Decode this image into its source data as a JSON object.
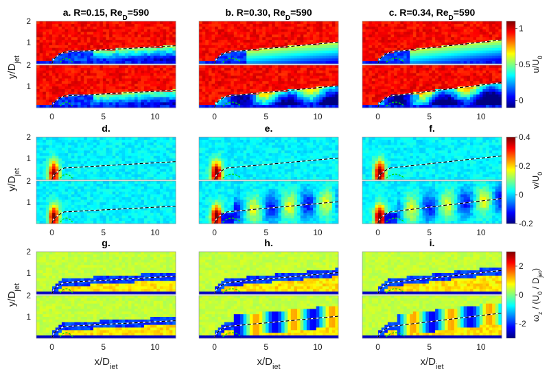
{
  "chart_data": {
    "type": "heatmap",
    "layout": {
      "rows": 3,
      "cols": 3,
      "subplots_per_panel": 2
    },
    "columns": [
      {
        "R": 0.15,
        "Re_D": 590,
        "title_prefix": "a.",
        "title_main": "R=0.15, Re",
        "title_sub": "D",
        "title_tail": "=590"
      },
      {
        "R": 0.3,
        "Re_D": 590,
        "title_prefix": "b.",
        "title_main": "R=0.30, Re",
        "title_sub": "D",
        "title_tail": "=590"
      },
      {
        "R": 0.34,
        "Re_D": 590,
        "title_prefix": "c.",
        "title_main": "R=0.34, Re",
        "title_sub": "D",
        "title_tail": "=590"
      }
    ],
    "row_titles": [
      [
        "",
        "",
        ""
      ],
      [
        "d.",
        "e.",
        "f."
      ],
      [
        "g.",
        "h.",
        "i."
      ]
    ],
    "xlabel": {
      "main": "x/D",
      "sub": "jet"
    },
    "ylabel": {
      "main": "y/D",
      "sub": "jet"
    },
    "xlim": [
      -1.5,
      12
    ],
    "ylim": [
      0,
      2
    ],
    "xticks": [
      0,
      5,
      10
    ],
    "yticks_upper": [
      1,
      2
    ],
    "yticks_lower": [
      1,
      2
    ],
    "fields": [
      {
        "name": "u",
        "colorbar": {
          "label_main": "u/U",
          "label_sub": "0",
          "min": -0.1,
          "max": 1.1,
          "ticks": [
            0,
            0.5,
            1
          ]
        }
      },
      {
        "name": "v",
        "colorbar": {
          "label_main": "v/U",
          "label_sub": "0",
          "min": -0.2,
          "max": 0.4,
          "ticks": [
            -0.2,
            0,
            0.2,
            0.4
          ]
        }
      },
      {
        "name": "omega_z",
        "colorbar": {
          "label_main": "ω",
          "label_sub": "z",
          "label_tail": " / (U",
          "label_sub2": "0",
          "label_tail2": " / D",
          "label_sub3": "jet",
          "label_tail3": ")",
          "min": -3,
          "max": 3,
          "ticks": [
            -2,
            0,
            2
          ]
        }
      }
    ],
    "trajectories": [
      {
        "column": 0,
        "upper_end": 0.85,
        "lower_end": 0.82
      },
      {
        "column": 1,
        "upper_end": 1.02,
        "lower_end": 1.03
      },
      {
        "column": 2,
        "upper_end": 1.12,
        "lower_end": 1.18
      }
    ],
    "colormap": "jet",
    "grid": false
  }
}
